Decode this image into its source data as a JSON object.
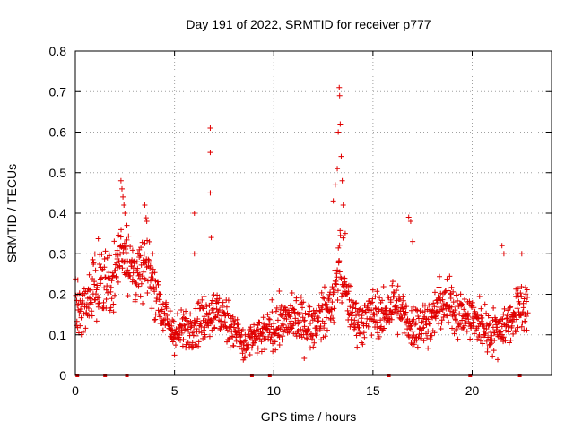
{
  "chart_data": {
    "type": "scatter",
    "title": "Day 191 of 2022, SRMTID for receiver p777",
    "xlabel": "GPS time / hours",
    "ylabel": "SRMTID / TECUs",
    "xlim": [
      0,
      24
    ],
    "ylim": [
      0,
      0.8
    ],
    "xticks": [
      0,
      5,
      10,
      15,
      20
    ],
    "yticks": [
      0,
      0.1,
      0.2,
      0.3,
      0.4,
      0.5,
      0.6,
      0.7,
      0.8
    ],
    "xtick_labels": [
      "0",
      "5",
      "10",
      "15",
      "20"
    ],
    "ytick_labels": [
      "0",
      "0.1",
      "0.2",
      "0.3",
      "0.4",
      "0.5",
      "0.6",
      "0.7",
      "0.8"
    ],
    "grid": true,
    "legend": "none",
    "marker": "plus",
    "color": "#e00000",
    "envelope": {
      "x": [
        0.0,
        0.5,
        1.0,
        1.5,
        2.0,
        2.4,
        2.8,
        3.2,
        3.6,
        4.0,
        4.5,
        5.0,
        5.5,
        6.0,
        6.5,
        7.0,
        7.5,
        8.0,
        8.5,
        9.0,
        9.5,
        10.0,
        10.5,
        11.0,
        11.5,
        12.0,
        12.5,
        13.0,
        13.3,
        13.6,
        14.0,
        14.5,
        15.0,
        15.5,
        16.0,
        16.5,
        17.0,
        17.5,
        18.0,
        18.5,
        19.0,
        19.5,
        20.0,
        20.5,
        21.0,
        21.5,
        22.0,
        22.5,
        22.8
      ],
      "center": [
        0.17,
        0.15,
        0.24,
        0.23,
        0.25,
        0.33,
        0.27,
        0.24,
        0.28,
        0.22,
        0.14,
        0.1,
        0.11,
        0.13,
        0.14,
        0.16,
        0.14,
        0.12,
        0.07,
        0.09,
        0.1,
        0.12,
        0.13,
        0.14,
        0.13,
        0.12,
        0.15,
        0.18,
        0.29,
        0.2,
        0.15,
        0.13,
        0.16,
        0.14,
        0.18,
        0.15,
        0.12,
        0.13,
        0.14,
        0.18,
        0.17,
        0.15,
        0.14,
        0.12,
        0.11,
        0.12,
        0.14,
        0.17,
        0.18
      ],
      "spread": [
        0.06,
        0.06,
        0.07,
        0.07,
        0.08,
        0.09,
        0.08,
        0.07,
        0.07,
        0.06,
        0.05,
        0.04,
        0.05,
        0.05,
        0.05,
        0.05,
        0.05,
        0.05,
        0.04,
        0.04,
        0.04,
        0.05,
        0.05,
        0.05,
        0.05,
        0.05,
        0.05,
        0.05,
        0.08,
        0.06,
        0.05,
        0.05,
        0.05,
        0.05,
        0.06,
        0.05,
        0.05,
        0.05,
        0.05,
        0.06,
        0.06,
        0.05,
        0.05,
        0.05,
        0.05,
        0.05,
        0.05,
        0.06,
        0.05
      ],
      "point_count": 1400,
      "x_range": [
        0.0,
        22.8
      ]
    },
    "spikes": [
      {
        "x": 2.3,
        "y": 0.48
      },
      {
        "x": 2.35,
        "y": 0.46
      },
      {
        "x": 2.4,
        "y": 0.44
      },
      {
        "x": 2.45,
        "y": 0.42
      },
      {
        "x": 2.5,
        "y": 0.4
      },
      {
        "x": 2.6,
        "y": 0.37
      },
      {
        "x": 3.5,
        "y": 0.42
      },
      {
        "x": 3.6,
        "y": 0.38
      },
      {
        "x": 3.9,
        "y": 0.3
      },
      {
        "x": 6.0,
        "y": 0.4
      },
      {
        "x": 6.0,
        "y": 0.3
      },
      {
        "x": 6.8,
        "y": 0.61
      },
      {
        "x": 6.8,
        "y": 0.55
      },
      {
        "x": 6.8,
        "y": 0.45
      },
      {
        "x": 6.85,
        "y": 0.34
      },
      {
        "x": 13.0,
        "y": 0.43
      },
      {
        "x": 13.1,
        "y": 0.47
      },
      {
        "x": 13.2,
        "y": 0.51
      },
      {
        "x": 13.25,
        "y": 0.6
      },
      {
        "x": 13.3,
        "y": 0.71
      },
      {
        "x": 13.32,
        "y": 0.69
      },
      {
        "x": 13.35,
        "y": 0.62
      },
      {
        "x": 13.4,
        "y": 0.54
      },
      {
        "x": 13.45,
        "y": 0.48
      },
      {
        "x": 13.5,
        "y": 0.42
      },
      {
        "x": 13.6,
        "y": 0.35
      },
      {
        "x": 16.8,
        "y": 0.39
      },
      {
        "x": 16.9,
        "y": 0.38
      },
      {
        "x": 17.0,
        "y": 0.33
      },
      {
        "x": 21.5,
        "y": 0.32
      },
      {
        "x": 21.6,
        "y": 0.3
      },
      {
        "x": 22.5,
        "y": 0.3
      }
    ],
    "zero_points": [
      0.1,
      1.5,
      2.6,
      8.9,
      9.8,
      15.8,
      19.9,
      22.4
    ]
  }
}
